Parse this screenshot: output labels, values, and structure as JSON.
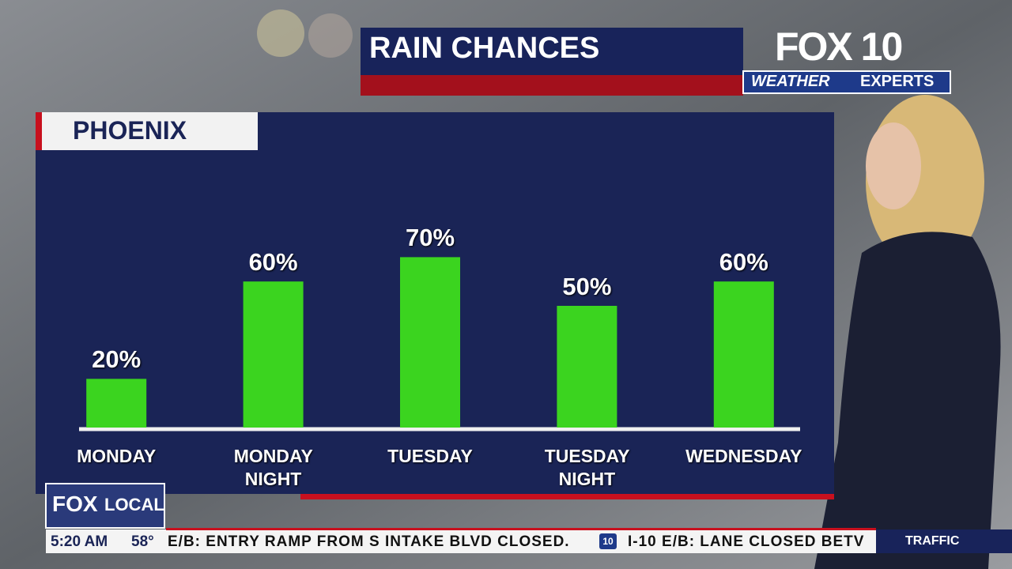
{
  "chart_data": {
    "type": "bar",
    "title": "RAIN CHANCES",
    "subtitle": "PHOENIX",
    "categories": [
      "MONDAY",
      "MONDAY NIGHT",
      "TUESDAY",
      "TUESDAY NIGHT",
      "WEDNESDAY"
    ],
    "values": [
      20,
      60,
      70,
      50,
      60
    ],
    "value_labels": [
      "20%",
      "60%",
      "70%",
      "50%",
      "60%"
    ],
    "color": "#3bd41f",
    "ylim": [
      0,
      100
    ]
  },
  "branding": {
    "station": "FOX 10",
    "tag_left": "WEATHER",
    "tag_right": "EXPERTS",
    "local_left": "FOX",
    "local_right": "LOCAL"
  },
  "ticker": {
    "time": "5:20 AM",
    "temperature": "58°",
    "items": [
      "E/B: ENTRY RAMP FROM S INTAKE BLVD CLOSED.",
      "I-10 E/B: LANE CLOSED BETV"
    ],
    "shield": "10",
    "section": "TRAFFIC"
  }
}
